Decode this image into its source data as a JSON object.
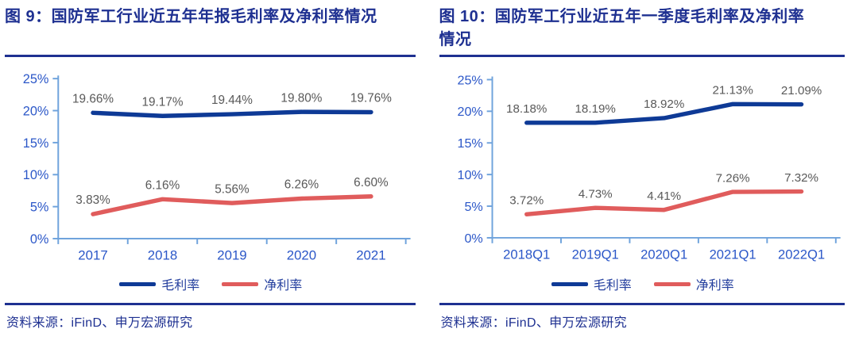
{
  "chart_data": [
    {
      "type": "line",
      "title": "图 9：国防军工行业近五年年报毛利率及净利率情况",
      "categories": [
        "2017",
        "2018",
        "2019",
        "2020",
        "2021"
      ],
      "series": [
        {
          "name": "毛利率",
          "color": "#0e3a96",
          "values": [
            19.66,
            19.17,
            19.44,
            19.8,
            19.76
          ],
          "labels": [
            "19.66%",
            "19.17%",
            "19.44%",
            "19.80%",
            "19.76%"
          ]
        },
        {
          "name": "净利率",
          "color": "#e05c5c",
          "values": [
            3.83,
            6.16,
            5.56,
            6.26,
            6.6
          ],
          "labels": [
            "3.83%",
            "6.16%",
            "5.56%",
            "6.26%",
            "6.60%"
          ]
        }
      ],
      "ylim": [
        0,
        25
      ],
      "y_ticks": [
        "0%",
        "5%",
        "10%",
        "15%",
        "20%",
        "25%"
      ],
      "grid": false,
      "data_labels": true,
      "legend_position": "bottom",
      "source": "资料来源：iFinD、申万宏源研究"
    },
    {
      "type": "line",
      "title": "图 10：国防军工行业近五年一季度毛利率及净利率情况",
      "categories": [
        "2018Q1",
        "2019Q1",
        "2020Q1",
        "2021Q1",
        "2022Q1"
      ],
      "series": [
        {
          "name": "毛利率",
          "color": "#0e3a96",
          "values": [
            18.18,
            18.19,
            18.92,
            21.13,
            21.09
          ],
          "labels": [
            "18.18%",
            "18.19%",
            "18.92%",
            "21.13%",
            "21.09%"
          ]
        },
        {
          "name": "净利率",
          "color": "#e05c5c",
          "values": [
            3.72,
            4.73,
            4.41,
            7.26,
            7.32
          ],
          "labels": [
            "3.72%",
            "4.73%",
            "4.41%",
            "7.26%",
            "7.32%"
          ]
        }
      ],
      "ylim": [
        0,
        25
      ],
      "y_ticks": [
        "0%",
        "5%",
        "10%",
        "15%",
        "20%",
        "25%"
      ],
      "grid": false,
      "data_labels": true,
      "legend_position": "bottom",
      "source": "资料来源：iFinD、申万宏源研究"
    }
  ],
  "colors": {
    "title_navy": "#1e3091",
    "rule_navy": "#1e3091",
    "gross_margin_line": "#0e3a96",
    "net_margin_line": "#e05c5c",
    "axis_line_blue": "#6fa3dc",
    "axis_text_blue": "#2b57c8",
    "data_label_gray": "#595959",
    "legend_text_blue": "#243f9e",
    "background": "#ffffff"
  }
}
